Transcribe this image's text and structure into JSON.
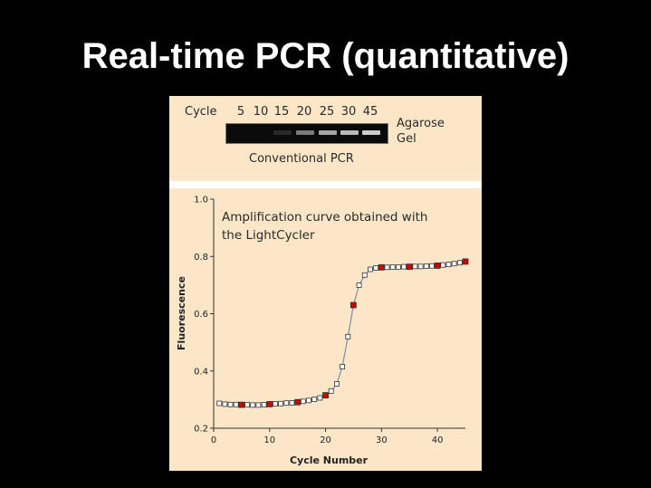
{
  "slide": {
    "title": "Real-time PCR (quantitative)"
  },
  "gel": {
    "cycle_label": "Cycle",
    "cycles": [
      "5",
      "10",
      "15",
      "20",
      "25",
      "30",
      "45"
    ],
    "band_intensity": [
      0,
      0,
      0.15,
      0.55,
      0.75,
      0.85,
      0.95
    ],
    "side_label_line1": "Agarose",
    "side_label_line2": "Gel",
    "caption": "Conventional PCR"
  },
  "chart_data": {
    "type": "scatter",
    "annotation_line1": "Amplification curve obtained with",
    "annotation_line2": "the LightCycler",
    "xlabel": "Cycle Number",
    "ylabel": "Fluorescence",
    "xlim": [
      0,
      45
    ],
    "ylim": [
      0.2,
      1.0
    ],
    "x_ticks": [
      0,
      10,
      20,
      30,
      40
    ],
    "y_ticks": [
      0.2,
      0.4,
      0.6,
      0.8,
      1.0
    ],
    "x_tick_labels": [
      "0",
      "10",
      "20",
      "30",
      "40"
    ],
    "y_tick_labels": [
      "0.2",
      "0.4",
      "0.6",
      "0.8",
      "1.0"
    ],
    "grid": false,
    "series": [
      {
        "x": [
          1,
          2,
          3,
          4,
          5,
          6,
          7,
          8,
          9,
          10,
          11,
          12,
          13,
          14,
          15,
          16,
          17,
          18,
          19,
          20,
          21,
          22,
          23,
          24,
          25,
          26,
          27,
          28,
          29,
          30,
          31,
          32,
          33,
          34,
          35,
          36,
          37,
          38,
          39,
          40,
          41,
          42,
          43,
          44,
          45
        ],
        "values": [
          0.287,
          0.284,
          0.283,
          0.283,
          0.282,
          0.282,
          0.281,
          0.281,
          0.282,
          0.284,
          0.285,
          0.286,
          0.288,
          0.289,
          0.291,
          0.294,
          0.297,
          0.301,
          0.306,
          0.315,
          0.33,
          0.355,
          0.415,
          0.52,
          0.63,
          0.7,
          0.735,
          0.755,
          0.76,
          0.762,
          0.762,
          0.763,
          0.763,
          0.764,
          0.764,
          0.765,
          0.765,
          0.766,
          0.767,
          0.768,
          0.77,
          0.772,
          0.775,
          0.778,
          0.782
        ],
        "highlighted_x": [
          5,
          10,
          15,
          20,
          25,
          30,
          35,
          40,
          45
        ]
      }
    ],
    "colors": {
      "marker": "#ffffff",
      "highlight": "#d40000",
      "line": "#7a8fa8"
    }
  }
}
